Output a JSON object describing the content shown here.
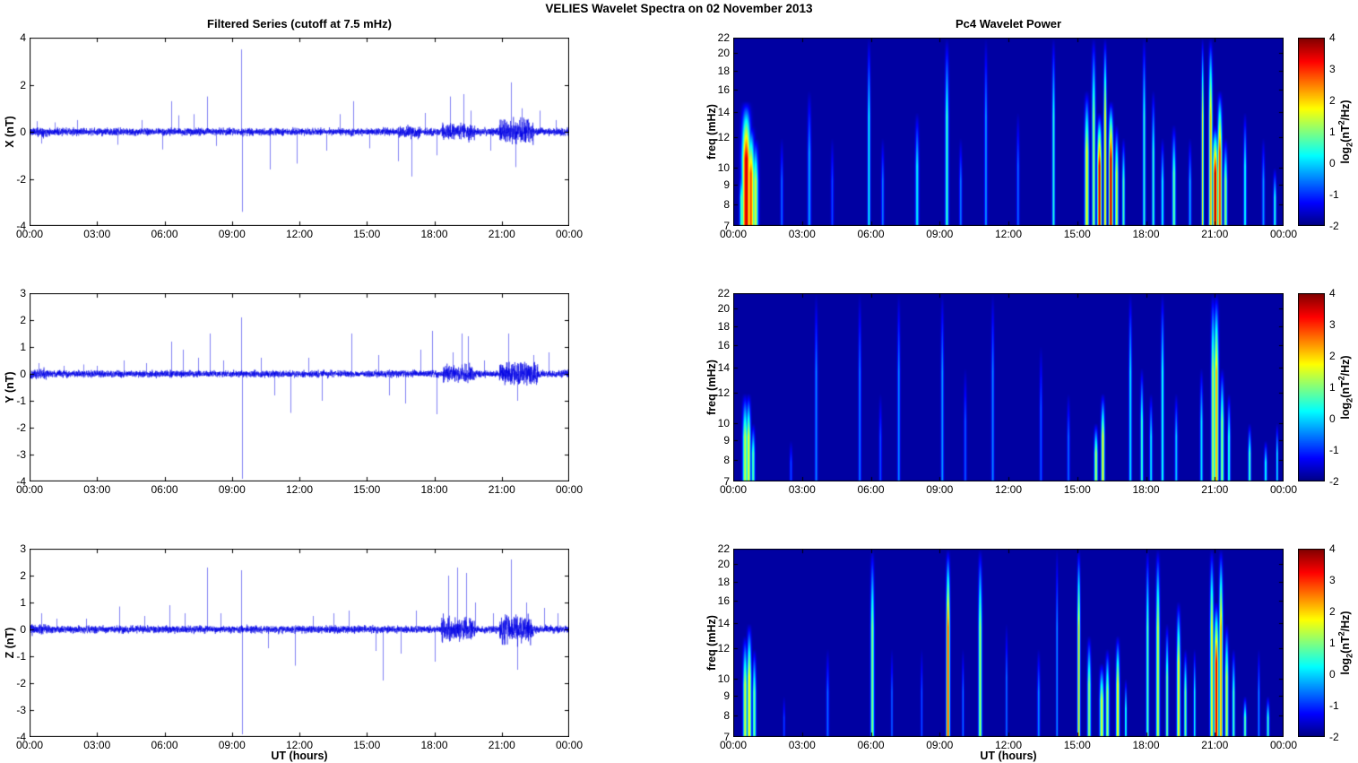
{
  "title": "VELIES Wavelet Spectra on 02 November  2013",
  "left_title": "Filtered Series (cutoff at 7.5 mHz)",
  "right_title": "Pc4 Wavelet Power",
  "xlabel": "UT (hours)",
  "x_tick_labels": [
    "00:00",
    "03:00",
    "06:00",
    "09:00",
    "12:00",
    "15:00",
    "18:00",
    "21:00",
    "00:00"
  ],
  "x_tick_hours": [
    0,
    3,
    6,
    9,
    12,
    15,
    18,
    21,
    24
  ],
  "colors": {
    "series_line": "#0000E6",
    "axis": "#000000",
    "plot_background": "#ffffff",
    "spectrogram_background": "#0000A0",
    "colormap": "jet"
  },
  "colorbar": {
    "min": -2,
    "max": 4,
    "ticks": [
      4,
      3,
      2,
      1,
      0,
      -1,
      -2
    ],
    "label_parts": {
      "pre": "log",
      "sub": "2",
      "mid": "(nT",
      "sup": "2",
      "post": "/Hz)"
    }
  },
  "chart_data": [
    {
      "id": "series-x",
      "type": "line",
      "row": 0,
      "column": "left",
      "ylabel": "X (nT)",
      "ylim": [
        -4,
        4
      ],
      "yticks": [
        4,
        2,
        0,
        -2,
        -4
      ],
      "x_range_hours": [
        0,
        24
      ],
      "noise_sigma": 0.075,
      "seed": 11,
      "bursts": [
        [
          0,
          0.8,
          0.1
        ],
        [
          16.4,
          17.4,
          0.12
        ],
        [
          18.3,
          19.8,
          0.16
        ],
        [
          20.9,
          22.4,
          0.25
        ]
      ],
      "spikes": [
        [
          0.3,
          0.45
        ],
        [
          0.5,
          -0.5
        ],
        [
          1.1,
          0.4
        ],
        [
          2.1,
          0.5
        ],
        [
          3.9,
          -0.55
        ],
        [
          5.0,
          0.5
        ],
        [
          5.9,
          -0.75
        ],
        [
          6.3,
          1.3
        ],
        [
          6.6,
          0.7
        ],
        [
          7.3,
          0.75
        ],
        [
          7.9,
          1.5
        ],
        [
          8.3,
          -0.6
        ],
        [
          9.4,
          3.5
        ],
        [
          9.45,
          -3.4
        ],
        [
          10.7,
          -1.6
        ],
        [
          11.9,
          -1.35
        ],
        [
          13.2,
          -0.8
        ],
        [
          13.8,
          0.75
        ],
        [
          14.4,
          1.3
        ],
        [
          15.1,
          -0.7
        ],
        [
          16.4,
          -1.25
        ],
        [
          17.0,
          -1.9
        ],
        [
          17.6,
          0.8
        ],
        [
          18.1,
          -1.0
        ],
        [
          18.7,
          1.5
        ],
        [
          19.3,
          1.6
        ],
        [
          19.6,
          0.9
        ],
        [
          20.5,
          -0.8
        ],
        [
          21.4,
          2.1
        ],
        [
          21.6,
          -1.5
        ],
        [
          21.9,
          1.0
        ],
        [
          22.7,
          0.9
        ],
        [
          23.4,
          0.5
        ]
      ]
    },
    {
      "id": "wavelet-x",
      "type": "heatmap",
      "row": 0,
      "column": "right",
      "ylabel": "freq (mHz)",
      "flim": [
        7,
        22
      ],
      "yticks": [
        22,
        20,
        18,
        16,
        14,
        12,
        10,
        9,
        8,
        7
      ],
      "x_range_hours": [
        0,
        24
      ],
      "background_power": -1.8,
      "streaks": [
        [
          0.55,
          0.12,
          15,
          3.6
        ],
        [
          0.75,
          0.1,
          13,
          2.8
        ],
        [
          0.95,
          0.08,
          12,
          1.5
        ],
        [
          0.35,
          0.06,
          10,
          0.8
        ],
        [
          2.1,
          0.04,
          12,
          -0.6
        ],
        [
          3.3,
          0.05,
          16,
          -0.3
        ],
        [
          4.3,
          0.04,
          12,
          -0.8
        ],
        [
          5.9,
          0.04,
          22,
          0.3
        ],
        [
          6.5,
          0.04,
          12,
          -0.5
        ],
        [
          8.0,
          0.05,
          14,
          0.2
        ],
        [
          9.3,
          0.05,
          22,
          0.6
        ],
        [
          9.9,
          0.04,
          12,
          -0.5
        ],
        [
          11.0,
          0.04,
          22,
          -0.3
        ],
        [
          12.4,
          0.04,
          14,
          -0.6
        ],
        [
          13.95,
          0.04,
          22,
          0.5
        ],
        [
          15.4,
          0.06,
          16,
          1.8
        ],
        [
          15.7,
          0.05,
          22,
          1.2
        ],
        [
          15.95,
          0.06,
          14,
          3.6
        ],
        [
          16.2,
          0.04,
          22,
          2.0
        ],
        [
          16.45,
          0.06,
          15,
          3.8
        ],
        [
          16.7,
          0.05,
          13,
          1.5
        ],
        [
          17.0,
          0.04,
          12,
          0.8
        ],
        [
          17.9,
          0.04,
          22,
          0.5
        ],
        [
          18.3,
          0.04,
          16,
          0.6
        ],
        [
          18.7,
          0.04,
          12,
          0.3
        ],
        [
          19.2,
          0.05,
          13,
          0.9
        ],
        [
          19.9,
          0.04,
          12,
          -0.2
        ],
        [
          20.45,
          0.03,
          22,
          1.8
        ],
        [
          20.8,
          0.05,
          22,
          2.2
        ],
        [
          21.0,
          0.07,
          13,
          3.8
        ],
        [
          21.2,
          0.06,
          16,
          3.0
        ],
        [
          21.45,
          0.05,
          12,
          1.2
        ],
        [
          22.3,
          0.04,
          14,
          0.4
        ],
        [
          23.1,
          0.04,
          12,
          -0.3
        ],
        [
          23.6,
          0.04,
          10,
          0.5
        ]
      ]
    },
    {
      "id": "series-y",
      "type": "line",
      "row": 1,
      "column": "left",
      "ylabel": "Y (nT)",
      "ylim": [
        -4,
        3
      ],
      "yticks": [
        3,
        2,
        1,
        0,
        -1,
        -2,
        -3,
        -4
      ],
      "x_range_hours": [
        0,
        24
      ],
      "noise_sigma": 0.06,
      "seed": 22,
      "bursts": [
        [
          0,
          0.8,
          0.09
        ],
        [
          18.4,
          19.8,
          0.14
        ],
        [
          20.9,
          22.6,
          0.2
        ]
      ],
      "spikes": [
        [
          0.4,
          0.4
        ],
        [
          1.5,
          0.3
        ],
        [
          2.4,
          0.35
        ],
        [
          3.0,
          0.3
        ],
        [
          4.2,
          0.5
        ],
        [
          5.2,
          0.4
        ],
        [
          6.3,
          1.2
        ],
        [
          6.8,
          0.9
        ],
        [
          7.5,
          0.6
        ],
        [
          8.0,
          1.5
        ],
        [
          8.6,
          0.5
        ],
        [
          9.4,
          2.1
        ],
        [
          9.45,
          -3.9
        ],
        [
          10.3,
          0.6
        ],
        [
          10.9,
          -0.8
        ],
        [
          11.6,
          -1.45
        ],
        [
          12.4,
          0.6
        ],
        [
          13.0,
          -1.0
        ],
        [
          14.3,
          1.5
        ],
        [
          15.5,
          0.7
        ],
        [
          16.0,
          -0.8
        ],
        [
          16.7,
          -1.1
        ],
        [
          17.4,
          0.9
        ],
        [
          17.9,
          1.6
        ],
        [
          18.1,
          -1.5
        ],
        [
          18.8,
          0.8
        ],
        [
          19.2,
          1.5
        ],
        [
          19.5,
          1.4
        ],
        [
          20.2,
          0.5
        ],
        [
          21.3,
          1.5
        ],
        [
          21.7,
          -1.0
        ],
        [
          22.4,
          0.7
        ],
        [
          23.1,
          0.8
        ]
      ]
    },
    {
      "id": "wavelet-y",
      "type": "heatmap",
      "row": 1,
      "column": "right",
      "ylabel": "freq (mHz)",
      "flim": [
        7,
        22
      ],
      "yticks": [
        22,
        20,
        18,
        16,
        14,
        12,
        10,
        9,
        8,
        7
      ],
      "x_range_hours": [
        0,
        24
      ],
      "background_power": -1.8,
      "streaks": [
        [
          0.5,
          0.07,
          12,
          1.4
        ],
        [
          0.65,
          0.06,
          12,
          1.7
        ],
        [
          0.85,
          0.05,
          10,
          0.8
        ],
        [
          2.5,
          0.04,
          9,
          -0.8
        ],
        [
          3.6,
          0.04,
          22,
          -0.4
        ],
        [
          5.5,
          0.04,
          22,
          -0.5
        ],
        [
          6.4,
          0.04,
          12,
          -0.8
        ],
        [
          7.2,
          0.04,
          22,
          -0.4
        ],
        [
          9.1,
          0.04,
          22,
          -0.3
        ],
        [
          10.1,
          0.04,
          14,
          -0.7
        ],
        [
          11.3,
          0.04,
          22,
          -0.4
        ],
        [
          13.4,
          0.04,
          16,
          -0.7
        ],
        [
          14.6,
          0.04,
          12,
          -0.6
        ],
        [
          15.8,
          0.05,
          10,
          1.4
        ],
        [
          16.1,
          0.05,
          12,
          1.8
        ],
        [
          17.3,
          0.04,
          22,
          0.2
        ],
        [
          17.8,
          0.04,
          14,
          0.7
        ],
        [
          18.2,
          0.04,
          12,
          0.2
        ],
        [
          18.7,
          0.04,
          22,
          0.5
        ],
        [
          19.3,
          0.04,
          12,
          0.0
        ],
        [
          20.4,
          0.04,
          14,
          0.2
        ],
        [
          20.9,
          0.05,
          22,
          1.5
        ],
        [
          21.05,
          0.06,
          22,
          2.3
        ],
        [
          21.3,
          0.05,
          14,
          1.2
        ],
        [
          21.6,
          0.04,
          12,
          0.6
        ],
        [
          22.5,
          0.04,
          10,
          0.8
        ],
        [
          23.2,
          0.04,
          9,
          0.4
        ],
        [
          23.7,
          0.03,
          10,
          0.3
        ]
      ]
    },
    {
      "id": "series-z",
      "type": "line",
      "row": 2,
      "column": "left",
      "ylabel": "Z (nT)",
      "ylim": [
        -4,
        3
      ],
      "yticks": [
        3,
        2,
        1,
        0,
        -1,
        -2,
        -3,
        -4
      ],
      "x_range_hours": [
        0,
        24
      ],
      "noise_sigma": 0.065,
      "seed": 33,
      "bursts": [
        [
          0,
          0.8,
          0.09
        ],
        [
          18.3,
          19.8,
          0.22
        ],
        [
          20.9,
          22.4,
          0.24
        ]
      ],
      "spikes": [
        [
          0.5,
          0.6
        ],
        [
          1.2,
          0.4
        ],
        [
          2.5,
          0.4
        ],
        [
          4.0,
          0.85
        ],
        [
          5.1,
          0.5
        ],
        [
          6.2,
          0.9
        ],
        [
          6.9,
          0.6
        ],
        [
          7.9,
          2.3
        ],
        [
          8.5,
          0.6
        ],
        [
          9.4,
          2.2
        ],
        [
          9.45,
          -3.9
        ],
        [
          10.6,
          -0.7
        ],
        [
          11.8,
          -1.35
        ],
        [
          12.6,
          0.5
        ],
        [
          13.5,
          0.6
        ],
        [
          14.2,
          0.7
        ],
        [
          15.4,
          -0.8
        ],
        [
          15.7,
          -1.9
        ],
        [
          16.5,
          -0.9
        ],
        [
          17.2,
          0.7
        ],
        [
          18.0,
          -1.2
        ],
        [
          18.6,
          2.0
        ],
        [
          19.0,
          2.3
        ],
        [
          19.4,
          2.1
        ],
        [
          19.8,
          1.0
        ],
        [
          20.6,
          0.6
        ],
        [
          21.4,
          2.6
        ],
        [
          21.7,
          -1.5
        ],
        [
          22.1,
          1.0
        ],
        [
          22.9,
          0.8
        ],
        [
          23.5,
          0.6
        ]
      ]
    },
    {
      "id": "wavelet-z",
      "type": "heatmap",
      "row": 2,
      "column": "right",
      "ylabel": "freq (mHz)",
      "flim": [
        7,
        22
      ],
      "yticks": [
        22,
        20,
        18,
        16,
        14,
        12,
        10,
        9,
        8,
        7
      ],
      "x_range_hours": [
        0,
        24
      ],
      "background_power": -1.8,
      "streaks": [
        [
          0.5,
          0.06,
          13,
          1.5
        ],
        [
          0.68,
          0.06,
          14,
          1.9
        ],
        [
          0.9,
          0.05,
          12,
          1.0
        ],
        [
          2.2,
          0.03,
          9,
          -0.8
        ],
        [
          4.1,
          0.04,
          12,
          -0.6
        ],
        [
          6.05,
          0.05,
          22,
          1.1
        ],
        [
          6.9,
          0.03,
          12,
          -0.6
        ],
        [
          8.2,
          0.03,
          12,
          -0.7
        ],
        [
          9.35,
          0.05,
          22,
          3.0
        ],
        [
          10.0,
          0.03,
          12,
          -0.5
        ],
        [
          10.75,
          0.05,
          22,
          1.3
        ],
        [
          11.9,
          0.03,
          14,
          -0.5
        ],
        [
          13.3,
          0.04,
          12,
          -0.4
        ],
        [
          14.1,
          0.03,
          22,
          -0.3
        ],
        [
          15.05,
          0.04,
          22,
          2.1
        ],
        [
          15.5,
          0.05,
          13,
          1.2
        ],
        [
          16.05,
          0.06,
          11,
          1.6
        ],
        [
          16.3,
          0.05,
          12,
          1.3
        ],
        [
          16.75,
          0.05,
          13,
          1.9
        ],
        [
          17.1,
          0.03,
          10,
          0.6
        ],
        [
          18.05,
          0.04,
          22,
          0.9
        ],
        [
          18.5,
          0.05,
          22,
          1.6
        ],
        [
          18.9,
          0.04,
          14,
          1.0
        ],
        [
          19.4,
          0.05,
          16,
          1.9
        ],
        [
          19.7,
          0.04,
          12,
          1.0
        ],
        [
          20.1,
          0.03,
          12,
          0.4
        ],
        [
          20.85,
          0.05,
          22,
          1.8
        ],
        [
          21.05,
          0.06,
          16,
          3.6
        ],
        [
          21.25,
          0.05,
          22,
          2.4
        ],
        [
          21.5,
          0.05,
          14,
          1.5
        ],
        [
          21.8,
          0.04,
          12,
          0.8
        ],
        [
          22.3,
          0.04,
          9,
          0.9
        ],
        [
          22.9,
          0.03,
          12,
          -0.3
        ],
        [
          23.3,
          0.04,
          9,
          0.6
        ]
      ]
    }
  ]
}
